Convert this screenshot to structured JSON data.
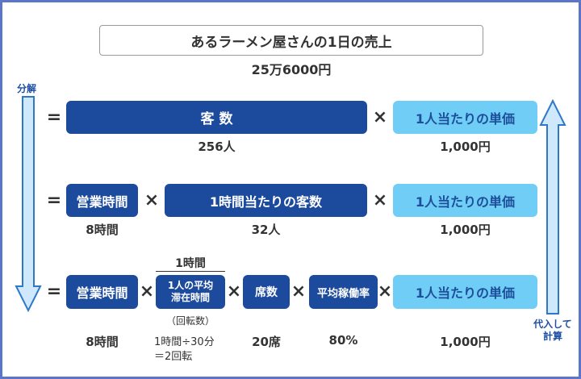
{
  "title": "あるラーメン屋さんの1日の売上",
  "total": "25万6000円",
  "left_arrow_label": "分解",
  "right_arrow_label_line1": "代入して",
  "right_arrow_label_line2": "計算",
  "operators": {
    "eq": "=",
    "times": "×"
  },
  "row1": {
    "box1": "客 数",
    "box1_value": "256人",
    "box2": "1人当たりの単価",
    "box2_value": "1,000円"
  },
  "row2": {
    "box1": "営業時間",
    "box1_value": "8時間",
    "box2": "1時間当たりの客数",
    "box2_value": "32人",
    "box3": "1人当たりの単価",
    "box3_value": "1,000円"
  },
  "row3": {
    "box1": "営業時間",
    "box1_value": "8時間",
    "fraction_numerator": "1時間",
    "box2_line1": "1人の平均",
    "box2_line2": "滞在時間",
    "box2_sub": "（回転数）",
    "box2_value_line1": "1時間÷30分",
    "box2_value_line2": "＝2回転",
    "box3": "席数",
    "box3_value": "20席",
    "box4": "平均稼働率",
    "box4_value": "80%",
    "box5": "1人当たりの単価",
    "box5_value": "1,000円"
  },
  "colors": {
    "dark_blue": "#1c4b9e",
    "light_blue": "#6fcdf6",
    "frame": "#5b76c9",
    "arrow_fill": "#cfe8fb",
    "arrow_stroke": "#2e78c8"
  }
}
